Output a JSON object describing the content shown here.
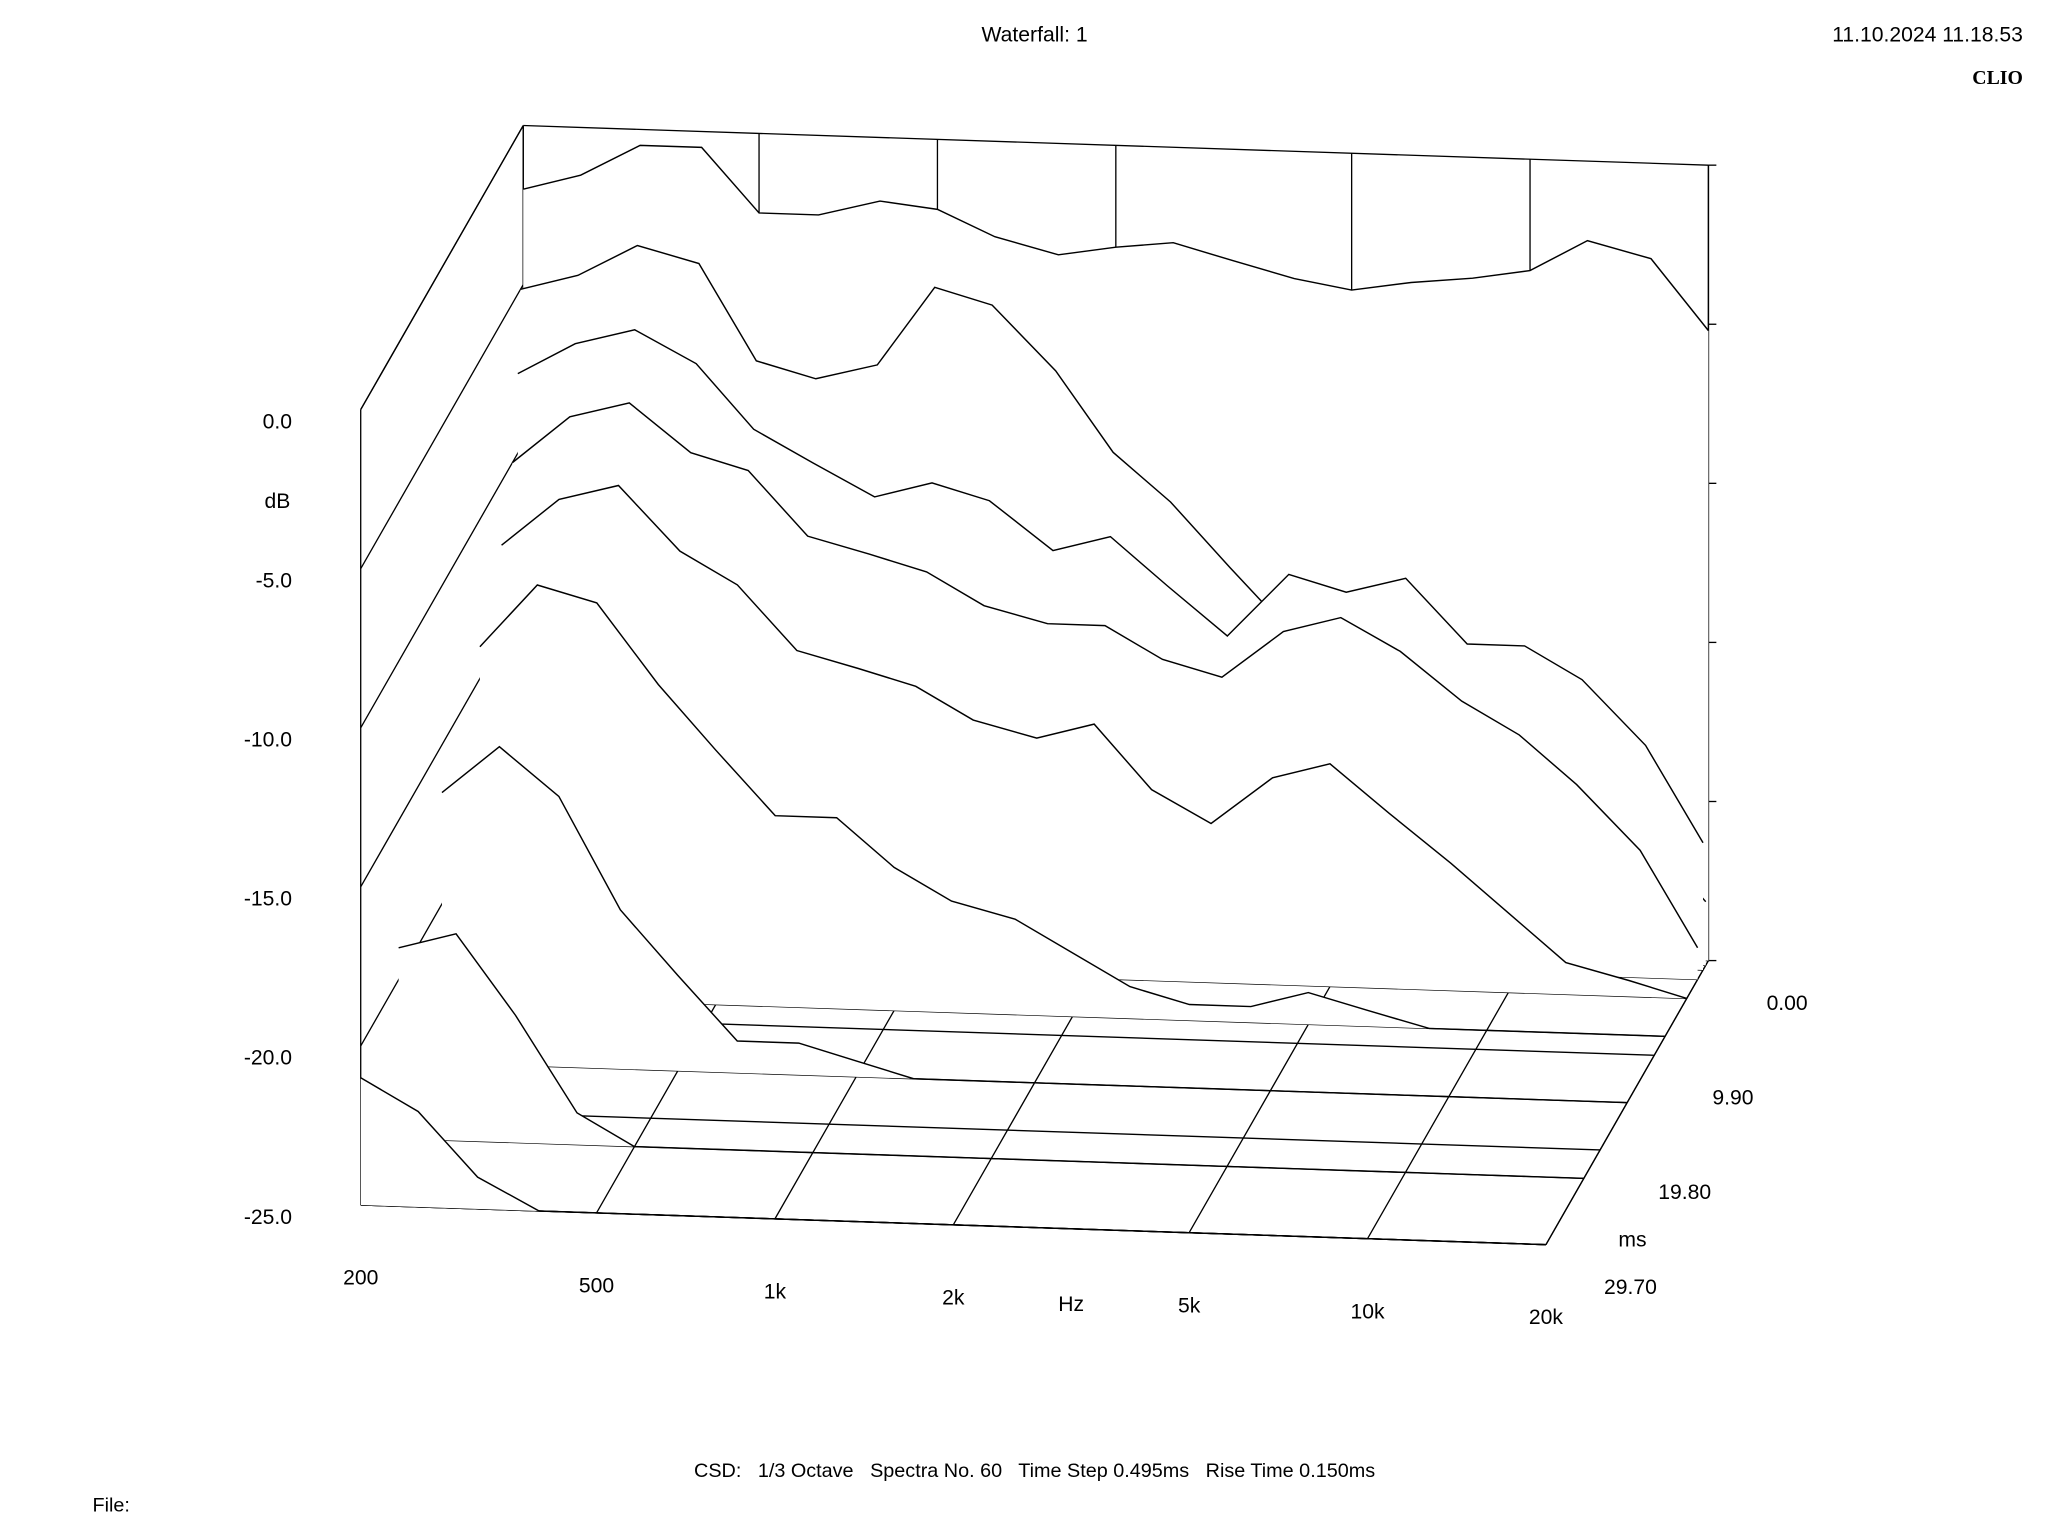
{
  "chart_data": {
    "type": "waterfall",
    "title": "Waterfall: 1",
    "timestamp": "11.10.2024 11.18.53",
    "brand": "CLIO",
    "x_label": "Hz",
    "y_label": "dB",
    "z_label": "ms",
    "footer": "CSD:   1/3 Octave   Spectra No. 60   Time Step 0.495ms   Rise Time 0.150ms",
    "file_label": "File:",
    "color": "#000000",
    "xscale": "log",
    "xlim": [
      200,
      20000
    ],
    "xticks": [
      200,
      500,
      {
        "value": 1000,
        "label": "1k"
      },
      {
        "value": 2000,
        "label": "2k"
      },
      {
        "value": 5000,
        "label": "5k"
      },
      {
        "value": 10000,
        "label": "10k"
      },
      {
        "value": 20000,
        "label": "20k"
      }
    ],
    "ylim": [
      -25,
      0
    ],
    "yticks": [
      {
        "value": 0,
        "label": "0.0"
      },
      {
        "value": -5,
        "label": "-5.0"
      },
      {
        "value": -10,
        "label": "-10.0"
      },
      {
        "value": -15,
        "label": "-15.0"
      },
      {
        "value": -20,
        "label": "-20.0"
      },
      {
        "value": -25,
        "label": "-25.0"
      }
    ],
    "zlim": [
      0,
      29.7
    ],
    "zticks": [
      {
        "value": 0,
        "label": "0.00"
      },
      {
        "value": 9.9,
        "label": "9.90"
      },
      {
        "value": 19.8,
        "label": "19.80"
      },
      {
        "value": 29.7,
        "label": "29.70"
      }
    ],
    "x": [
      200,
      250,
      315,
      400,
      500,
      630,
      800,
      1000,
      1250,
      1600,
      2000,
      2500,
      3150,
      4000,
      5000,
      6300,
      8000,
      10000,
      12500,
      16000,
      20000
    ],
    "spectra": [
      {
        "time": 0,
        "values": [
          -2,
          -1.5,
          -0.5,
          -0.5,
          -2.5,
          -2.5,
          -2,
          -2.2,
          -3,
          -3.5,
          -3.2,
          -3,
          -3.5,
          -4,
          -4.3,
          -4,
          -3.8,
          -3.5,
          -2.5,
          -3,
          -5.2
        ]
      },
      {
        "time": 0.495,
        "values": [
          -5,
          -4.5,
          -3.5,
          -4,
          -7,
          -7.5,
          -7,
          -4.5,
          -5,
          -7,
          -9.5,
          -11,
          -13,
          -15,
          -16,
          -17,
          -18.5,
          -19,
          -19.5,
          -21,
          -23
        ]
      },
      {
        "time": 0.99,
        "values": [
          -7.5,
          -6.5,
          -6,
          -7,
          -9,
          -10,
          -11,
          -10.5,
          -11,
          -12.5,
          -12,
          -13.5,
          -15,
          -13,
          -13.5,
          -13,
          -15,
          -15,
          -16,
          -18,
          -21
        ]
      },
      {
        "time": 1.98,
        "values": [
          -10,
          -8.5,
          -8,
          -9.5,
          -10,
          -12,
          -12.5,
          -13,
          -14,
          -14.5,
          -14.5,
          -15.5,
          -16,
          -14.5,
          -14,
          -15,
          -16.5,
          -17.5,
          -19,
          -21,
          -24
        ]
      },
      {
        "time": 3.96,
        "values": [
          -12,
          -10.5,
          -10,
          -12,
          -13,
          -15,
          -15.5,
          -16,
          -17,
          -17.5,
          -17,
          -19,
          -20,
          -18.5,
          -18,
          -19.5,
          -21,
          -22.5,
          -24,
          -24.5,
          -25
        ]
      },
      {
        "time": 7.92,
        "values": [
          -14,
          -12,
          -12.5,
          -15,
          -17,
          -19,
          -19,
          -20.5,
          -21.5,
          -22,
          -23,
          -24,
          -24.5,
          -24.5,
          -24,
          -24.5,
          -25,
          -25,
          -25,
          -25,
          -25
        ]
      },
      {
        "time": 14.85,
        "values": [
          -16.5,
          -15,
          -16.5,
          -20,
          -22,
          -24,
          -24,
          -24.5,
          -25,
          -25,
          -25,
          -25,
          -25,
          -25,
          -25,
          -25,
          -25,
          -25,
          -25,
          -25,
          -25
        ]
      },
      {
        "time": 22.77,
        "values": [
          -19,
          -18.5,
          -21,
          -24,
          -25,
          -25,
          -25,
          -25,
          -25,
          -25,
          -25,
          -25,
          -25,
          -25,
          -25,
          -25,
          -25,
          -25,
          -25,
          -25,
          -25
        ]
      },
      {
        "time": 29.7,
        "values": [
          -21,
          -22,
          -24,
          -25,
          -25,
          -25,
          -25,
          -25,
          -25,
          -25,
          -25,
          -25,
          -25,
          -25,
          -25,
          -25,
          -25,
          -25,
          -25,
          -25,
          -25
        ]
      }
    ]
  }
}
